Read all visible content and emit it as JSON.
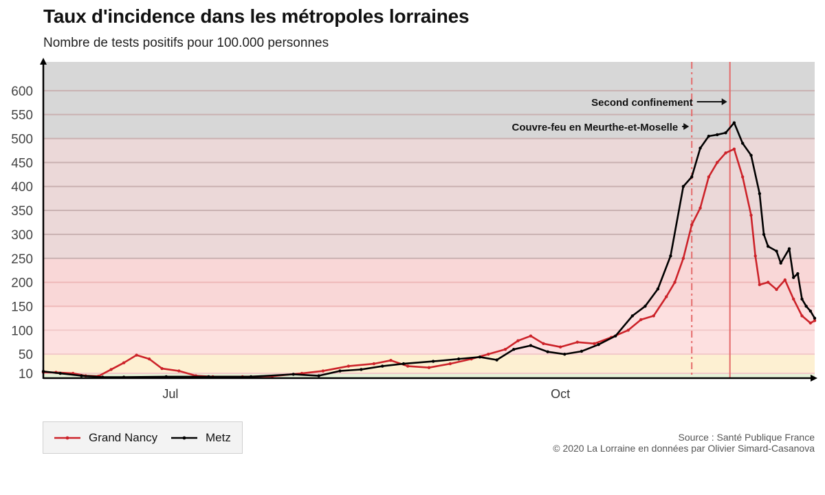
{
  "title": "Taux d'incidence dans les métropoles lorraines",
  "subtitle": "Nombre de tests positifs pour 100.000 personnes",
  "source_line1": "Source : Santé Publique France",
  "source_line2": "© 2020 La Lorraine en données par Olivier Simard-Casanova",
  "colors": {
    "nancy": "#cc2229",
    "metz": "#000000",
    "band_green": "#e6f2d8",
    "band_yellow": "#fdf0d2",
    "band_red_light": "#fde0e0",
    "band_red": "#f9d7d7",
    "band_red_dark": "#ebd8d8",
    "band_gray": "#d7d7d7"
  },
  "chart_data": {
    "type": "line",
    "title": "Taux d'incidence dans les métropoles lorraines",
    "subtitle": "Nombre de tests positifs pour 100.000 personnes",
    "xlabel": "",
    "ylabel": "",
    "x_range": [
      "2020-06-01",
      "2020-11-30"
    ],
    "ylim": [
      0,
      660
    ],
    "y_ticks": [
      10,
      50,
      100,
      150,
      200,
      250,
      300,
      350,
      400,
      450,
      500,
      550,
      600
    ],
    "x_ticks": [
      {
        "date": "2020-07-01",
        "label": "Jul"
      },
      {
        "date": "2020-10-01",
        "label": "Oct"
      }
    ],
    "threshold_bands": [
      {
        "from": 0,
        "to": 10,
        "color": "band_green"
      },
      {
        "from": 10,
        "to": 50,
        "color": "band_yellow"
      },
      {
        "from": 50,
        "to": 150,
        "color": "band_red_light"
      },
      {
        "from": 150,
        "to": 250,
        "color": "band_red"
      },
      {
        "from": 250,
        "to": 500,
        "color": "band_red_dark"
      },
      {
        "from": 500,
        "to": 660,
        "color": "band_gray"
      }
    ],
    "grid": true,
    "legend_position": "bottom-left",
    "series": [
      {
        "name": "Grand Nancy",
        "color": "nancy",
        "points": [
          [
            "2020-06-01",
            12
          ],
          [
            "2020-06-04",
            12
          ],
          [
            "2020-06-08",
            10
          ],
          [
            "2020-06-11",
            5
          ],
          [
            "2020-06-14",
            4
          ],
          [
            "2020-06-17",
            18
          ],
          [
            "2020-06-20",
            32
          ],
          [
            "2020-06-23",
            48
          ],
          [
            "2020-06-26",
            40
          ],
          [
            "2020-06-29",
            20
          ],
          [
            "2020-07-03",
            15
          ],
          [
            "2020-07-07",
            5
          ],
          [
            "2020-07-11",
            3
          ],
          [
            "2020-07-18",
            3
          ],
          [
            "2020-07-25",
            4
          ],
          [
            "2020-08-01",
            10
          ],
          [
            "2020-08-06",
            15
          ],
          [
            "2020-08-12",
            25
          ],
          [
            "2020-08-18",
            30
          ],
          [
            "2020-08-22",
            37
          ],
          [
            "2020-08-26",
            25
          ],
          [
            "2020-08-31",
            22
          ],
          [
            "2020-09-05",
            30
          ],
          [
            "2020-09-10",
            40
          ],
          [
            "2020-09-14",
            50
          ],
          [
            "2020-09-18",
            60
          ],
          [
            "2020-09-21",
            78
          ],
          [
            "2020-09-24",
            88
          ],
          [
            "2020-09-27",
            72
          ],
          [
            "2020-10-01",
            65
          ],
          [
            "2020-10-05",
            75
          ],
          [
            "2020-10-09",
            72
          ],
          [
            "2020-10-13",
            85
          ],
          [
            "2020-10-17",
            100
          ],
          [
            "2020-10-20",
            122
          ],
          [
            "2020-10-23",
            130
          ],
          [
            "2020-10-26",
            170
          ],
          [
            "2020-10-28",
            200
          ],
          [
            "2020-10-30",
            250
          ],
          [
            "2020-11-01",
            320
          ],
          [
            "2020-11-03",
            355
          ],
          [
            "2020-11-05",
            420
          ],
          [
            "2020-11-07",
            450
          ],
          [
            "2020-11-09",
            470
          ],
          [
            "2020-11-11",
            478
          ],
          [
            "2020-11-13",
            420
          ],
          [
            "2020-11-15",
            340
          ],
          [
            "2020-11-16",
            255
          ],
          [
            "2020-11-17",
            195
          ],
          [
            "2020-11-19",
            200
          ],
          [
            "2020-11-21",
            185
          ],
          [
            "2020-11-23",
            205
          ],
          [
            "2020-11-25",
            165
          ],
          [
            "2020-11-27",
            130
          ],
          [
            "2020-11-29",
            115
          ],
          [
            "2020-11-30",
            120
          ]
        ]
      },
      {
        "name": "Metz",
        "color": "metz",
        "points": [
          [
            "2020-06-01",
            14
          ],
          [
            "2020-06-05",
            10
          ],
          [
            "2020-06-10",
            5
          ],
          [
            "2020-06-15",
            2
          ],
          [
            "2020-06-20",
            2
          ],
          [
            "2020-06-30",
            3
          ],
          [
            "2020-07-10",
            3
          ],
          [
            "2020-07-20",
            3
          ],
          [
            "2020-07-30",
            8
          ],
          [
            "2020-08-05",
            5
          ],
          [
            "2020-08-10",
            15
          ],
          [
            "2020-08-15",
            18
          ],
          [
            "2020-08-20",
            25
          ],
          [
            "2020-08-25",
            30
          ],
          [
            "2020-09-01",
            35
          ],
          [
            "2020-09-07",
            40
          ],
          [
            "2020-09-12",
            44
          ],
          [
            "2020-09-16",
            38
          ],
          [
            "2020-09-20",
            60
          ],
          [
            "2020-09-24",
            68
          ],
          [
            "2020-09-28",
            55
          ],
          [
            "2020-10-02",
            50
          ],
          [
            "2020-10-06",
            56
          ],
          [
            "2020-10-10",
            70
          ],
          [
            "2020-10-14",
            88
          ],
          [
            "2020-10-18",
            130
          ],
          [
            "2020-10-21",
            150
          ],
          [
            "2020-10-24",
            186
          ],
          [
            "2020-10-27",
            255
          ],
          [
            "2020-10-30",
            400
          ],
          [
            "2020-11-01",
            420
          ],
          [
            "2020-11-03",
            480
          ],
          [
            "2020-11-05",
            505
          ],
          [
            "2020-11-07",
            508
          ],
          [
            "2020-11-09",
            512
          ],
          [
            "2020-11-11",
            533
          ],
          [
            "2020-11-13",
            490
          ],
          [
            "2020-11-15",
            465
          ],
          [
            "2020-11-17",
            385
          ],
          [
            "2020-11-18",
            300
          ],
          [
            "2020-11-19",
            275
          ],
          [
            "2020-11-21",
            265
          ],
          [
            "2020-11-22",
            240
          ],
          [
            "2020-11-24",
            270
          ],
          [
            "2020-11-25",
            210
          ],
          [
            "2020-11-26",
            218
          ],
          [
            "2020-11-27",
            165
          ],
          [
            "2020-11-28",
            150
          ],
          [
            "2020-11-29",
            140
          ],
          [
            "2020-11-30",
            125
          ]
        ]
      }
    ],
    "annotations": [
      {
        "label": "Second confinement",
        "date": "2020-11-10",
        "line": "solid"
      },
      {
        "label": "Couvre-feu en Meurthe-et-Moselle",
        "date": "2020-11-01",
        "line": "dashdot"
      }
    ]
  }
}
